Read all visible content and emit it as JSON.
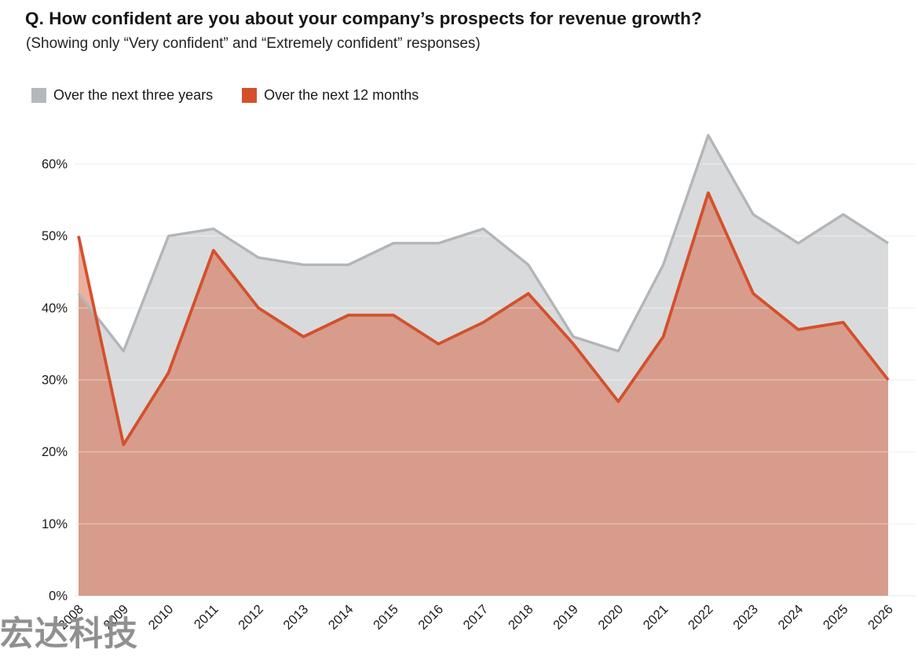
{
  "header": {
    "title": "Q. How confident are you about your company’s prospects for revenue growth?",
    "subtitle": "(Showing only “Very confident” and “Extremely confident” responses)"
  },
  "legend": {
    "items": [
      {
        "label": "Over the next three years",
        "color": "#b4b8bb"
      },
      {
        "label": "Over the next 12 months",
        "color": "#d4502b"
      }
    ]
  },
  "chart_data": {
    "type": "area",
    "title": "Q. How confident are you about your company’s prospects for revenue growth?",
    "subtitle": "(Showing only “Very confident” and “Extremely confident” responses)",
    "x": [
      "2008",
      "2009",
      "2010",
      "2011",
      "2012",
      "2013",
      "2014",
      "2015",
      "2016",
      "2017",
      "2018",
      "2019",
      "2020",
      "2021",
      "2022",
      "2023",
      "2024",
      "2025",
      "2026"
    ],
    "series": [
      {
        "name": "Over the next three years",
        "slug": "three-years",
        "values": [
          42,
          34,
          50,
          51,
          47,
          46,
          46,
          49,
          49,
          51,
          46,
          36,
          34,
          46,
          64,
          53,
          49,
          53,
          49
        ],
        "line_color": "#b2b6b9",
        "fill_color": "#d9dadc"
      },
      {
        "name": "Over the next 12 months",
        "slug": "twelve-months",
        "values": [
          50,
          21,
          31,
          48,
          40,
          36,
          39,
          39,
          35,
          38,
          42,
          35,
          27,
          36,
          56,
          42,
          37,
          38,
          30
        ],
        "line_color": "#d4502b",
        "fill_color": "rgba(212,80,43,0.45)"
      }
    ],
    "ylim": [
      0,
      60
    ],
    "yticks": [
      0,
      10,
      20,
      30,
      40,
      50,
      60
    ],
    "ytick_labels": [
      "0%",
      "10%",
      "20%",
      "30%",
      "40%",
      "50%",
      "60%"
    ],
    "unit": "%",
    "grid": true,
    "legend_position": "top-left"
  },
  "watermark": {
    "text": "宏达科技",
    "color": "#909090"
  }
}
